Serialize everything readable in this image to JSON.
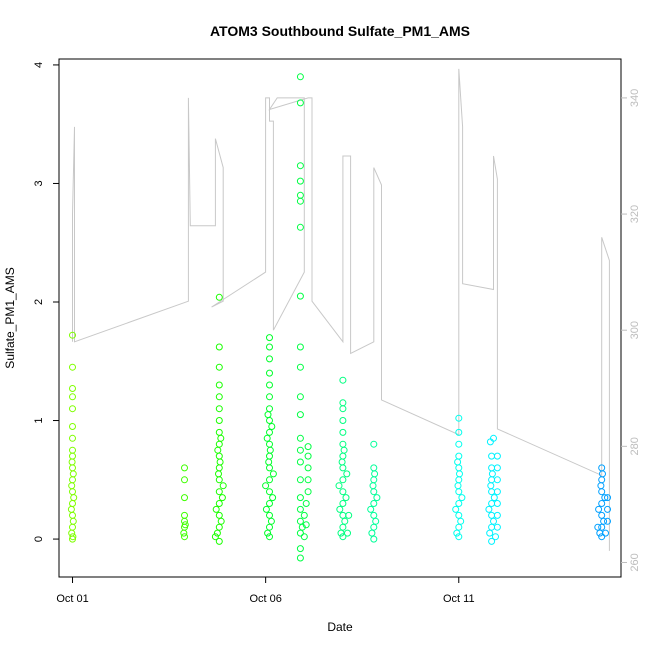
{
  "chart_data": {
    "type": "scatter",
    "title": "ATOM3 Southbound Sulfate_PM1_AMS",
    "xlabel": "Date",
    "ylabel": "Sulfate_PM1_AMS",
    "x_ticks": [
      "Oct 01",
      "Oct 06",
      "Oct 11"
    ],
    "x_tick_days": [
      1,
      6,
      11
    ],
    "xlim_days": [
      0.65,
      15.2
    ],
    "ylim": [
      -0.32,
      4.05
    ],
    "y_ticks": [
      0,
      1,
      2,
      3,
      4
    ],
    "y2_ticks": [
      260,
      280,
      300,
      320,
      340
    ],
    "y2lim": [
      257.5,
      346.7
    ],
    "grid": false,
    "legend": "none",
    "colors": {
      "right_axis": "#bdbdbd",
      "altitude_line": "#c8c8c8",
      "frame": "#000000"
    },
    "series": [
      {
        "color": "#7fff00",
        "points": [
          [
            1.0,
            0.0
          ],
          [
            1.0,
            0.1
          ],
          [
            1.0,
            0.2
          ],
          [
            1.0,
            0.3
          ],
          [
            1.0,
            0.4
          ],
          [
            1.0,
            0.5
          ],
          [
            1.0,
            0.6
          ],
          [
            1.0,
            0.7
          ],
          [
            1.0,
            0.75
          ],
          [
            1.0,
            0.85
          ],
          [
            1.0,
            0.95
          ],
          [
            1.0,
            1.1
          ],
          [
            1.0,
            1.2
          ],
          [
            1.0,
            1.27
          ],
          [
            1.0,
            1.45
          ],
          [
            1.0,
            1.72
          ],
          [
            0.98,
            0.05
          ],
          [
            1.02,
            0.15
          ],
          [
            0.97,
            0.25
          ],
          [
            1.03,
            0.35
          ],
          [
            0.98,
            0.45
          ],
          [
            1.02,
            0.55
          ],
          [
            0.99,
            0.65
          ],
          [
            1.01,
            0.02
          ]
        ]
      },
      {
        "color": "#3fff00",
        "points": [
          [
            3.9,
            0.02
          ],
          [
            3.9,
            0.1
          ],
          [
            3.9,
            0.15
          ],
          [
            3.9,
            0.2
          ],
          [
            3.9,
            0.35
          ],
          [
            3.9,
            0.5
          ],
          [
            3.9,
            0.6
          ],
          [
            3.88,
            0.05
          ],
          [
            3.92,
            0.12
          ]
        ]
      },
      {
        "color": "#1aff00",
        "points": [
          [
            4.8,
            -0.02
          ],
          [
            4.8,
            0.1
          ],
          [
            4.8,
            0.2
          ],
          [
            4.8,
            0.3
          ],
          [
            4.8,
            0.4
          ],
          [
            4.8,
            0.5
          ],
          [
            4.8,
            0.6
          ],
          [
            4.8,
            0.7
          ],
          [
            4.8,
            0.8
          ],
          [
            4.8,
            0.9
          ],
          [
            4.8,
            1.0
          ],
          [
            4.8,
            1.1
          ],
          [
            4.8,
            1.2
          ],
          [
            4.8,
            1.3
          ],
          [
            4.8,
            1.45
          ],
          [
            4.8,
            1.62
          ],
          [
            4.8,
            2.04
          ],
          [
            4.75,
            0.05
          ],
          [
            4.85,
            0.15
          ],
          [
            4.72,
            0.25
          ],
          [
            4.88,
            0.35
          ],
          [
            4.7,
            0.02
          ],
          [
            4.9,
            0.45
          ],
          [
            4.78,
            0.55
          ],
          [
            4.82,
            0.65
          ],
          [
            4.76,
            0.75
          ],
          [
            4.84,
            0.85
          ]
        ]
      },
      {
        "color": "#00ff2a",
        "points": [
          [
            6.1,
            0.02
          ],
          [
            6.1,
            0.1
          ],
          [
            6.1,
            0.2
          ],
          [
            6.1,
            0.3
          ],
          [
            6.1,
            0.4
          ],
          [
            6.1,
            0.5
          ],
          [
            6.1,
            0.6
          ],
          [
            6.1,
            0.7
          ],
          [
            6.1,
            0.8
          ],
          [
            6.1,
            0.9
          ],
          [
            6.1,
            1.0
          ],
          [
            6.1,
            1.1
          ],
          [
            6.1,
            1.2
          ],
          [
            6.1,
            1.3
          ],
          [
            6.1,
            1.4
          ],
          [
            6.1,
            1.52
          ],
          [
            6.1,
            1.62
          ],
          [
            6.1,
            1.7
          ],
          [
            6.05,
            0.05
          ],
          [
            6.15,
            0.15
          ],
          [
            6.02,
            0.25
          ],
          [
            6.18,
            0.35
          ],
          [
            6.0,
            0.45
          ],
          [
            6.2,
            0.55
          ],
          [
            6.08,
            0.65
          ],
          [
            6.12,
            0.75
          ],
          [
            6.04,
            0.85
          ],
          [
            6.16,
            0.95
          ],
          [
            6.06,
            1.05
          ]
        ]
      },
      {
        "color": "#00ff44",
        "points": [
          [
            6.9,
            -0.16
          ],
          [
            6.9,
            -0.08
          ],
          [
            6.9,
            0.05
          ],
          [
            6.9,
            0.15
          ],
          [
            6.9,
            0.25
          ],
          [
            6.9,
            0.35
          ],
          [
            6.9,
            0.5
          ],
          [
            6.9,
            0.65
          ],
          [
            6.9,
            0.75
          ],
          [
            6.9,
            0.85
          ],
          [
            6.9,
            1.05
          ],
          [
            6.9,
            1.2
          ],
          [
            6.9,
            1.45
          ],
          [
            6.9,
            1.62
          ],
          [
            6.9,
            2.05
          ],
          [
            6.9,
            2.63
          ],
          [
            6.9,
            2.85
          ],
          [
            6.9,
            2.9
          ],
          [
            6.9,
            3.02
          ],
          [
            6.9,
            3.15
          ],
          [
            6.9,
            3.68
          ],
          [
            6.9,
            3.9
          ],
          [
            6.95,
            0.1
          ],
          [
            7.0,
            0.2
          ],
          [
            7.05,
            0.3
          ],
          [
            7.1,
            0.4
          ],
          [
            7.1,
            0.5
          ],
          [
            7.1,
            0.6
          ],
          [
            7.1,
            0.7
          ],
          [
            7.1,
            0.78
          ],
          [
            7.0,
            0.02
          ],
          [
            7.05,
            0.12
          ]
        ]
      },
      {
        "color": "#00ff80",
        "points": [
          [
            8.0,
            0.02
          ],
          [
            8.0,
            0.1
          ],
          [
            8.0,
            0.2
          ],
          [
            8.0,
            0.3
          ],
          [
            8.0,
            0.4
          ],
          [
            8.0,
            0.5
          ],
          [
            8.0,
            0.6
          ],
          [
            8.0,
            0.7
          ],
          [
            8.0,
            0.8
          ],
          [
            8.0,
            0.9
          ],
          [
            8.0,
            1.0
          ],
          [
            8.0,
            1.1
          ],
          [
            8.0,
            1.15
          ],
          [
            8.0,
            1.34
          ],
          [
            7.95,
            0.05
          ],
          [
            8.05,
            0.15
          ],
          [
            7.92,
            0.25
          ],
          [
            8.08,
            0.35
          ],
          [
            7.9,
            0.45
          ],
          [
            8.1,
            0.55
          ],
          [
            7.98,
            0.65
          ],
          [
            8.03,
            0.75
          ],
          [
            8.12,
            0.05
          ],
          [
            8.15,
            0.2
          ]
        ]
      },
      {
        "color": "#00ff99",
        "points": [
          [
            8.8,
            0.0
          ],
          [
            8.8,
            0.1
          ],
          [
            8.8,
            0.2
          ],
          [
            8.8,
            0.3
          ],
          [
            8.8,
            0.4
          ],
          [
            8.8,
            0.5
          ],
          [
            8.8,
            0.6
          ],
          [
            8.8,
            0.8
          ],
          [
            8.75,
            0.05
          ],
          [
            8.85,
            0.15
          ],
          [
            8.72,
            0.25
          ],
          [
            8.88,
            0.35
          ],
          [
            8.78,
            0.45
          ],
          [
            8.82,
            0.55
          ]
        ]
      },
      {
        "color": "#00ffee",
        "points": [
          [
            11.0,
            0.02
          ],
          [
            11.0,
            0.1
          ],
          [
            11.0,
            0.2
          ],
          [
            11.0,
            0.3
          ],
          [
            11.0,
            0.4
          ],
          [
            11.0,
            0.5
          ],
          [
            11.0,
            0.6
          ],
          [
            11.0,
            0.7
          ],
          [
            11.0,
            0.8
          ],
          [
            11.0,
            0.9
          ],
          [
            11.0,
            1.02
          ],
          [
            10.95,
            0.05
          ],
          [
            11.05,
            0.15
          ],
          [
            10.92,
            0.25
          ],
          [
            11.08,
            0.35
          ],
          [
            10.98,
            0.45
          ],
          [
            11.02,
            0.55
          ],
          [
            10.97,
            0.65
          ]
        ]
      },
      {
        "color": "#00f2ff",
        "points": [
          [
            11.85,
            -0.02
          ],
          [
            11.85,
            0.1
          ],
          [
            11.85,
            0.2
          ],
          [
            11.85,
            0.3
          ],
          [
            11.85,
            0.4
          ],
          [
            11.85,
            0.5
          ],
          [
            11.85,
            0.6
          ],
          [
            11.85,
            0.7
          ],
          [
            11.9,
            0.85
          ],
          [
            11.82,
            0.82
          ],
          [
            11.8,
            0.05
          ],
          [
            11.9,
            0.15
          ],
          [
            11.78,
            0.25
          ],
          [
            11.92,
            0.35
          ],
          [
            11.83,
            0.45
          ],
          [
            11.87,
            0.55
          ],
          [
            11.95,
            0.02
          ],
          [
            12.0,
            0.1
          ],
          [
            12.0,
            0.2
          ],
          [
            12.0,
            0.3
          ],
          [
            12.0,
            0.4
          ],
          [
            12.0,
            0.5
          ],
          [
            12.0,
            0.6
          ],
          [
            12.0,
            0.7
          ]
        ]
      },
      {
        "color": "#00a0ff",
        "points": [
          [
            14.7,
            0.02
          ],
          [
            14.7,
            0.1
          ],
          [
            14.7,
            0.2
          ],
          [
            14.7,
            0.3
          ],
          [
            14.7,
            0.4
          ],
          [
            14.7,
            0.5
          ],
          [
            14.7,
            0.6
          ],
          [
            14.65,
            0.05
          ],
          [
            14.75,
            0.15
          ],
          [
            14.62,
            0.25
          ],
          [
            14.78,
            0.35
          ],
          [
            14.68,
            0.45
          ],
          [
            14.72,
            0.55
          ],
          [
            14.8,
            0.05
          ],
          [
            14.85,
            0.15
          ],
          [
            14.85,
            0.25
          ],
          [
            14.85,
            0.35
          ],
          [
            14.6,
            0.1
          ]
        ]
      }
    ],
    "altitude_line": [
      [
        1.0,
        298
      ],
      [
        1.0,
        320
      ],
      [
        1.05,
        335
      ],
      [
        1.05,
        298
      ],
      [
        4.0,
        305
      ],
      [
        4.0,
        340
      ],
      [
        4.05,
        318
      ],
      [
        4.7,
        318
      ],
      [
        4.7,
        333
      ],
      [
        4.9,
        328
      ],
      [
        4.9,
        305
      ],
      [
        4.6,
        304
      ],
      [
        6.0,
        310
      ],
      [
        6.0,
        340
      ],
      [
        6.1,
        340
      ],
      [
        6.1,
        336
      ],
      [
        6.2,
        336
      ],
      [
        6.2,
        300
      ],
      [
        7.0,
        310
      ],
      [
        7.0,
        340
      ],
      [
        6.3,
        340
      ],
      [
        6.1,
        338
      ],
      [
        7.1,
        340
      ],
      [
        7.2,
        340
      ],
      [
        7.2,
        305
      ],
      [
        8.0,
        298
      ],
      [
        8.0,
        330
      ],
      [
        8.2,
        330
      ],
      [
        8.2,
        296
      ],
      [
        8.8,
        298
      ],
      [
        8.8,
        328
      ],
      [
        9.0,
        325
      ],
      [
        9.0,
        288
      ],
      [
        11.0,
        282
      ],
      [
        11.0,
        345
      ],
      [
        11.1,
        335
      ],
      [
        11.1,
        308
      ],
      [
        11.9,
        307
      ],
      [
        11.9,
        330
      ],
      [
        12.0,
        326
      ],
      [
        12.0,
        283
      ],
      [
        14.7,
        275
      ],
      [
        14.7,
        316
      ],
      [
        14.9,
        312
      ],
      [
        14.9,
        262
      ]
    ]
  }
}
